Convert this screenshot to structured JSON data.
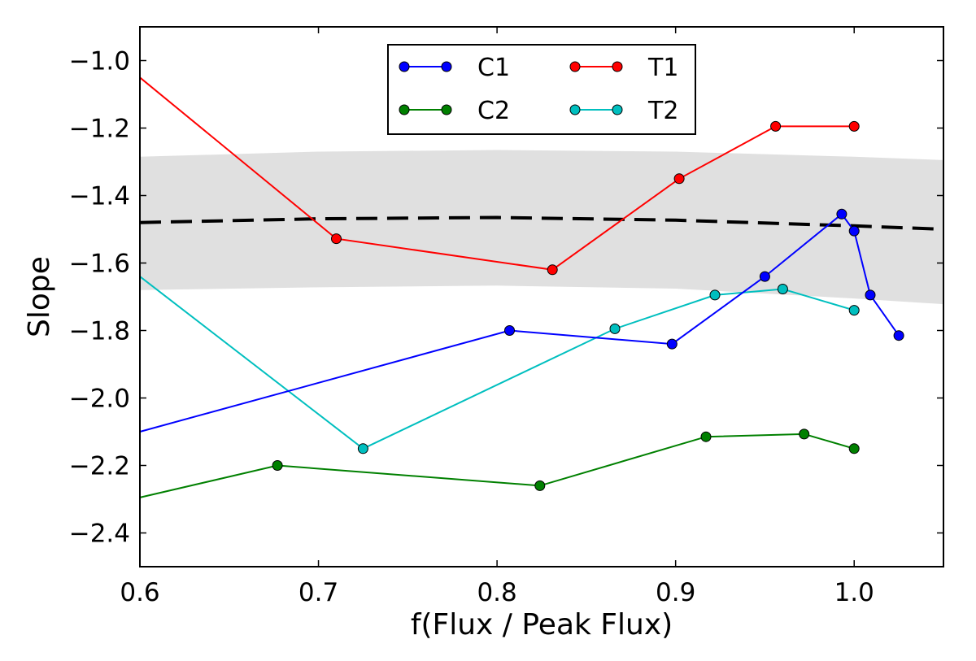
{
  "chart_data": {
    "type": "line",
    "title": "",
    "xlabel": "f(Flux / Peak Flux)",
    "ylabel": "Slope",
    "xlim": [
      0.6,
      1.05
    ],
    "ylim": [
      -2.5,
      -0.9
    ],
    "xticks": [
      0.6,
      0.7,
      0.8,
      0.9,
      1.0
    ],
    "xtick_labels": [
      "0.6",
      "0.7",
      "0.8",
      "0.9",
      "1.0"
    ],
    "yticks": [
      -1.0,
      -1.2,
      -1.4,
      -1.6,
      -1.8,
      -2.0,
      -2.2,
      -2.4
    ],
    "ytick_labels": [
      "−1.0",
      "−1.2",
      "−1.4",
      "−1.6",
      "−1.8",
      "−2.0",
      "−2.2",
      "−2.4"
    ],
    "grid": false,
    "legend_position": "top-center",
    "series": [
      {
        "name": "C1",
        "color": "#0000ff",
        "marker": "circle",
        "x": [
          0.6,
          0.807,
          0.898,
          0.95,
          0.993,
          1.0,
          1.009,
          1.025
        ],
        "y": [
          -2.1,
          -1.8,
          -1.84,
          -1.64,
          -1.455,
          -1.505,
          -1.695,
          -1.815
        ]
      },
      {
        "name": "C2",
        "color": "#008000",
        "marker": "circle",
        "x": [
          0.6,
          0.677,
          0.824,
          0.917,
          0.972,
          1.0
        ],
        "y": [
          -2.295,
          -2.2,
          -2.26,
          -2.115,
          -2.107,
          -2.15
        ]
      },
      {
        "name": "T1",
        "color": "#ff0000",
        "marker": "circle",
        "x": [
          0.6,
          0.71,
          0.831,
          0.902,
          0.956,
          1.0
        ],
        "y": [
          -1.05,
          -1.528,
          -1.62,
          -1.35,
          -1.195,
          -1.195
        ]
      },
      {
        "name": "T2",
        "color": "#00bfbf",
        "marker": "circle",
        "x": [
          0.6,
          0.725,
          0.866,
          0.922,
          0.96,
          1.0
        ],
        "y": [
          -1.64,
          -2.15,
          -1.795,
          -1.695,
          -1.677,
          -1.74
        ]
      }
    ],
    "reference_line": {
      "style": "dashed",
      "color": "#000000",
      "x": [
        0.6,
        0.7,
        0.8,
        0.9,
        1.0,
        1.05
      ],
      "y": [
        -1.48,
        -1.469,
        -1.465,
        -1.473,
        -1.49,
        -1.5
      ]
    },
    "uncertainty_band": {
      "color": "#e0e0e0",
      "x": [
        0.6,
        0.7,
        0.8,
        0.9,
        1.0,
        1.05
      ],
      "upper": [
        -1.285,
        -1.27,
        -1.265,
        -1.27,
        -1.285,
        -1.295
      ],
      "lower": [
        -1.68,
        -1.672,
        -1.667,
        -1.676,
        -1.705,
        -1.722
      ]
    }
  }
}
